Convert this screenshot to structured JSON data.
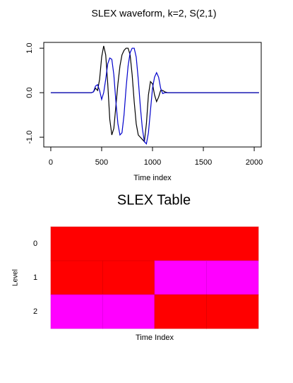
{
  "chart_data": [
    {
      "type": "line",
      "title": "SLEX waveform, k=2, S(2,1)",
      "x_label": "Time index",
      "x": [
        0,
        400,
        420,
        440,
        460,
        480,
        500,
        520,
        540,
        560,
        580,
        600,
        620,
        640,
        660,
        680,
        700,
        720,
        740,
        760,
        780,
        800,
        820,
        840,
        860,
        880,
        900,
        920,
        940,
        960,
        980,
        1000,
        1020,
        1040,
        1060,
        1080,
        1100,
        1120,
        1150,
        2047
      ],
      "series": [
        {
          "color": "#000000",
          "values": [
            0,
            0,
            0.02,
            0.1,
            0.05,
            0.3,
            0.8,
            1.05,
            0.85,
            0.2,
            -0.6,
            -0.95,
            -0.8,
            -0.3,
            0.2,
            0.6,
            0.85,
            0.95,
            1.0,
            1.0,
            0.85,
            0.4,
            -0.2,
            -0.7,
            -0.95,
            -1.0,
            -1.05,
            -1.1,
            -0.7,
            -0.05,
            0.25,
            0.2,
            -0.05,
            -0.2,
            -0.1,
            0.05,
            0.05,
            0.02,
            0,
            0
          ]
        },
        {
          "color": "#0000cc",
          "values": [
            0,
            0,
            0.02,
            0.15,
            0.18,
            0.05,
            -0.15,
            0.0,
            0.3,
            0.65,
            0.78,
            0.75,
            0.4,
            -0.2,
            -0.7,
            -0.95,
            -0.9,
            -0.5,
            0.1,
            0.6,
            0.9,
            1.0,
            1.0,
            0.8,
            0.3,
            -0.3,
            -0.8,
            -1.1,
            -1.15,
            -0.9,
            -0.4,
            0.1,
            0.35,
            0.45,
            0.35,
            0.1,
            -0.02,
            0,
            0,
            0
          ]
        }
      ],
      "xlim": [
        -69,
        2069
      ],
      "xticks": [
        0,
        500,
        1000,
        1500,
        2000
      ],
      "ylim": [
        -1.22,
        1.13
      ],
      "yticks": [
        {
          "value": -1,
          "label": "-1.0"
        },
        {
          "value": 0,
          "label": "0.0"
        },
        {
          "value": 1,
          "label": "1.0"
        }
      ]
    },
    {
      "type": "tiling",
      "title": "SLEX Table",
      "x_label": "Time Index",
      "y_label": "Level",
      "levels": [
        "0",
        "1",
        "2"
      ],
      "cells": [
        [
          "#ff0000"
        ],
        [
          "#ff0000",
          "#ff0000",
          "#ff00ff",
          "#ff00ff"
        ],
        [
          "#ff00ff",
          "#ff00ff",
          "#ff0000",
          "#ff0000"
        ]
      ]
    }
  ]
}
